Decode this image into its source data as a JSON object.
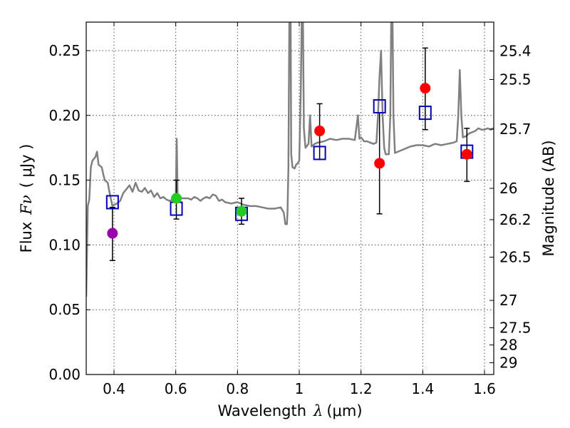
{
  "chart_data": {
    "type": "scatter",
    "xlabel_prefix": "Wavelength",
    "xlabel_symbol": "λ",
    "xlabel_unit": "(μm)",
    "ylabel_prefix": "Flux",
    "ylabel_symbol": "Fν",
    "ylabel_unit": "( μJy )",
    "y2label": "Magnitude (AB)",
    "xlim": [
      0.31,
      1.63
    ],
    "ylim": [
      0.0,
      0.272
    ],
    "x_ticks": [
      0.4,
      0.6,
      0.8,
      1.0,
      1.2,
      1.4,
      1.6
    ],
    "x_tick_labels": [
      "0.4",
      "0.6",
      "0.8",
      "1",
      "1.2",
      "1.4",
      "1.6"
    ],
    "y_ticks": [
      0.0,
      0.05,
      0.1,
      0.15,
      0.2,
      0.25
    ],
    "y_tick_labels": [
      "0.00",
      "0.05",
      "0.10",
      "0.15",
      "0.20",
      "0.25"
    ],
    "y2_ticks": [
      {
        "label": "25.4",
        "flux": 0.2497
      },
      {
        "label": "25.5",
        "flux": 0.2277
      },
      {
        "label": "25.7",
        "flux": 0.1894
      },
      {
        "label": "26",
        "flux": 0.1437
      },
      {
        "label": "26.2",
        "flux": 0.1195
      },
      {
        "label": "26.5",
        "flux": 0.0906
      },
      {
        "label": "27",
        "flux": 0.0572
      },
      {
        "label": "27.5",
        "flux": 0.0361
      },
      {
        "label": "28",
        "flux": 0.0228
      },
      {
        "label": "29",
        "flux": 0.0091
      }
    ],
    "grid": true,
    "colors": {
      "model": "#808080",
      "model_points": "#0000b4",
      "purple": "#9900aa",
      "green": "#22cc22",
      "red": "#ff0000",
      "errorbar": "#000000"
    },
    "model_spectrum": [
      [
        0.31,
        0.06
      ],
      [
        0.315,
        0.13
      ],
      [
        0.32,
        0.135
      ],
      [
        0.325,
        0.16
      ],
      [
        0.33,
        0.165
      ],
      [
        0.34,
        0.168
      ],
      [
        0.345,
        0.172
      ],
      [
        0.35,
        0.162
      ],
      [
        0.36,
        0.16
      ],
      [
        0.365,
        0.155
      ],
      [
        0.37,
        0.15
      ],
      [
        0.38,
        0.148
      ],
      [
        0.385,
        0.141
      ],
      [
        0.395,
        0.13
      ],
      [
        0.4,
        0.131
      ],
      [
        0.41,
        0.132
      ],
      [
        0.42,
        0.134
      ],
      [
        0.43,
        0.14
      ],
      [
        0.44,
        0.143
      ],
      [
        0.45,
        0.146
      ],
      [
        0.46,
        0.141
      ],
      [
        0.47,
        0.148
      ],
      [
        0.48,
        0.142
      ],
      [
        0.49,
        0.141
      ],
      [
        0.5,
        0.144
      ],
      [
        0.51,
        0.14
      ],
      [
        0.52,
        0.142
      ],
      [
        0.53,
        0.137
      ],
      [
        0.54,
        0.14
      ],
      [
        0.55,
        0.136
      ],
      [
        0.56,
        0.137
      ],
      [
        0.57,
        0.135
      ],
      [
        0.58,
        0.134
      ],
      [
        0.59,
        0.135
      ],
      [
        0.595,
        0.134
      ],
      [
        0.6,
        0.136
      ],
      [
        0.603,
        0.182
      ],
      [
        0.606,
        0.138
      ],
      [
        0.61,
        0.137
      ],
      [
        0.62,
        0.136
      ],
      [
        0.63,
        0.136
      ],
      [
        0.64,
        0.136
      ],
      [
        0.65,
        0.135
      ],
      [
        0.66,
        0.137
      ],
      [
        0.67,
        0.136
      ],
      [
        0.68,
        0.134
      ],
      [
        0.69,
        0.136
      ],
      [
        0.7,
        0.137
      ],
      [
        0.71,
        0.136
      ],
      [
        0.72,
        0.139
      ],
      [
        0.73,
        0.138
      ],
      [
        0.74,
        0.134
      ],
      [
        0.75,
        0.135
      ],
      [
        0.76,
        0.133
      ],
      [
        0.78,
        0.132
      ],
      [
        0.8,
        0.133
      ],
      [
        0.82,
        0.131
      ],
      [
        0.84,
        0.13
      ],
      [
        0.86,
        0.13
      ],
      [
        0.88,
        0.129
      ],
      [
        0.9,
        0.128
      ],
      [
        0.92,
        0.128
      ],
      [
        0.94,
        0.129
      ],
      [
        0.95,
        0.125
      ],
      [
        0.955,
        0.116
      ],
      [
        0.96,
        0.116
      ],
      [
        0.962,
        0.125
      ],
      [
        0.965,
        0.16
      ],
      [
        0.968,
        0.275
      ],
      [
        0.972,
        0.275
      ],
      [
        0.974,
        0.17
      ],
      [
        0.978,
        0.16
      ],
      [
        0.985,
        0.159
      ],
      [
        0.99,
        0.162
      ],
      [
        0.995,
        0.163
      ],
      [
        1.0,
        0.165
      ],
      [
        1.005,
        0.22
      ],
      [
        1.008,
        0.275
      ],
      [
        1.012,
        0.275
      ],
      [
        1.015,
        0.19
      ],
      [
        1.02,
        0.175
      ],
      [
        1.03,
        0.178
      ],
      [
        1.035,
        0.2
      ],
      [
        1.04,
        0.176
      ],
      [
        1.05,
        0.178
      ],
      [
        1.06,
        0.179
      ],
      [
        1.08,
        0.18
      ],
      [
        1.1,
        0.182
      ],
      [
        1.12,
        0.181
      ],
      [
        1.14,
        0.182
      ],
      [
        1.16,
        0.182
      ],
      [
        1.18,
        0.181
      ],
      [
        1.19,
        0.2
      ],
      [
        1.195,
        0.182
      ],
      [
        1.2,
        0.183
      ],
      [
        1.21,
        0.18
      ],
      [
        1.22,
        0.18
      ],
      [
        1.24,
        0.178
      ],
      [
        1.25,
        0.179
      ],
      [
        1.255,
        0.2
      ],
      [
        1.26,
        0.23
      ],
      [
        1.265,
        0.25
      ],
      [
        1.27,
        0.2
      ],
      [
        1.275,
        0.175
      ],
      [
        1.28,
        0.17
      ],
      [
        1.29,
        0.17
      ],
      [
        1.295,
        0.2
      ],
      [
        1.298,
        0.275
      ],
      [
        1.302,
        0.275
      ],
      [
        1.305,
        0.2
      ],
      [
        1.31,
        0.171
      ],
      [
        1.32,
        0.172
      ],
      [
        1.34,
        0.174
      ],
      [
        1.36,
        0.176
      ],
      [
        1.38,
        0.177
      ],
      [
        1.4,
        0.177
      ],
      [
        1.42,
        0.176
      ],
      [
        1.44,
        0.178
      ],
      [
        1.46,
        0.177
      ],
      [
        1.48,
        0.178
      ],
      [
        1.5,
        0.179
      ],
      [
        1.51,
        0.18
      ],
      [
        1.515,
        0.2
      ],
      [
        1.52,
        0.235
      ],
      [
        1.525,
        0.2
      ],
      [
        1.53,
        0.183
      ],
      [
        1.54,
        0.184
      ],
      [
        1.55,
        0.186
      ],
      [
        1.56,
        0.187
      ],
      [
        1.57,
        0.188
      ],
      [
        1.58,
        0.19
      ],
      [
        1.59,
        0.189
      ],
      [
        1.6,
        0.189
      ],
      [
        1.61,
        0.19
      ],
      [
        1.62,
        0.189
      ],
      [
        1.63,
        0.19
      ]
    ],
    "model_points": [
      {
        "x": 0.395,
        "y": 0.133
      },
      {
        "x": 0.602,
        "y": 0.128
      },
      {
        "x": 0.813,
        "y": 0.124
      },
      {
        "x": 1.066,
        "y": 0.171
      },
      {
        "x": 1.26,
        "y": 0.207
      },
      {
        "x": 1.408,
        "y": 0.202
      },
      {
        "x": 1.543,
        "y": 0.172
      }
    ],
    "observed_points": [
      {
        "x": 0.395,
        "y": 0.109,
        "err_low": 0.088,
        "err_high": 0.129,
        "color": "purple"
      },
      {
        "x": 0.602,
        "y": 0.136,
        "err_low": 0.12,
        "err_high": 0.15,
        "color": "green"
      },
      {
        "x": 0.813,
        "y": 0.126,
        "err_low": 0.116,
        "err_high": 0.136,
        "color": "green"
      },
      {
        "x": 1.066,
        "y": 0.188,
        "err_low": 0.166,
        "err_high": 0.209,
        "color": "red"
      },
      {
        "x": 1.26,
        "y": 0.163,
        "err_low": 0.124,
        "err_high": 0.202,
        "color": "red"
      },
      {
        "x": 1.408,
        "y": 0.221,
        "err_low": 0.189,
        "err_high": 0.252,
        "color": "red"
      },
      {
        "x": 1.543,
        "y": 0.17,
        "err_low": 0.149,
        "err_high": 0.19,
        "color": "red"
      }
    ]
  }
}
